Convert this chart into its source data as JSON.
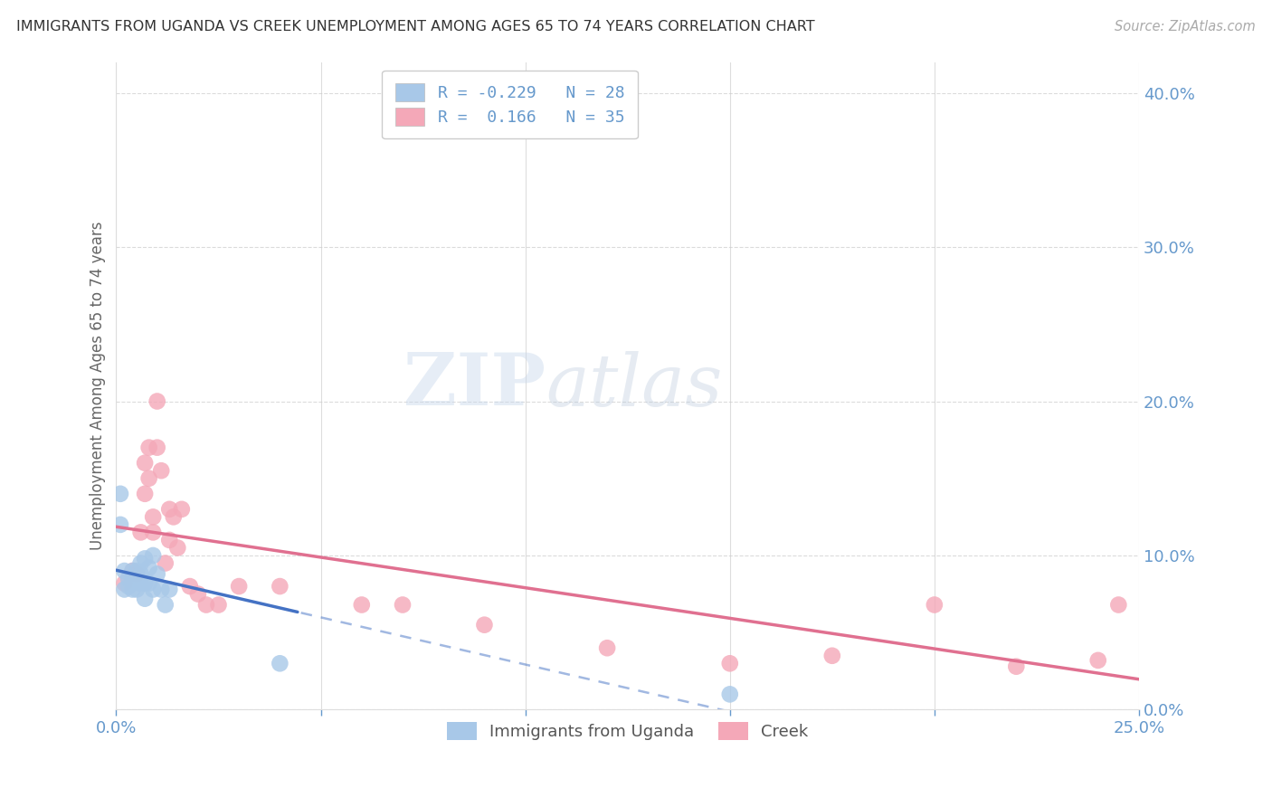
{
  "title": "IMMIGRANTS FROM UGANDA VS CREEK UNEMPLOYMENT AMONG AGES 65 TO 74 YEARS CORRELATION CHART",
  "source": "Source: ZipAtlas.com",
  "xlabel": "",
  "ylabel": "Unemployment Among Ages 65 to 74 years",
  "legend_bottom": [
    "Immigrants from Uganda",
    "Creek"
  ],
  "uganda_R": -0.229,
  "uganda_N": 28,
  "creek_R": 0.166,
  "creek_N": 35,
  "xlim": [
    0.0,
    0.25
  ],
  "ylim": [
    0.0,
    0.42
  ],
  "yticks": [
    0.0,
    0.1,
    0.2,
    0.3,
    0.4
  ],
  "ytick_labels": [
    "0.0%",
    "10.0%",
    "20.0%",
    "30.0%",
    "40.0%"
  ],
  "xticks": [
    0.0,
    0.05,
    0.1,
    0.15,
    0.2,
    0.25
  ],
  "xtick_labels": [
    "0.0%",
    "",
    "",
    "",
    "",
    "25.0%"
  ],
  "uganda_color": "#a8c8e8",
  "creek_color": "#f4a8b8",
  "uganda_line_color": "#4472c4",
  "creek_line_color": "#e07090",
  "watermark_zip": "ZIP",
  "watermark_atlas": "atlas",
  "background_color": "#ffffff",
  "grid_color": "#cccccc",
  "title_color": "#333333",
  "tick_color": "#6699cc",
  "uganda_points_x": [
    0.001,
    0.001,
    0.002,
    0.002,
    0.003,
    0.003,
    0.004,
    0.004,
    0.004,
    0.005,
    0.005,
    0.005,
    0.006,
    0.006,
    0.006,
    0.007,
    0.007,
    0.007,
    0.008,
    0.008,
    0.009,
    0.009,
    0.01,
    0.011,
    0.012,
    0.013,
    0.04,
    0.15
  ],
  "uganda_points_y": [
    0.14,
    0.12,
    0.09,
    0.078,
    0.085,
    0.08,
    0.09,
    0.085,
    0.078,
    0.09,
    0.085,
    0.078,
    0.095,
    0.088,
    0.082,
    0.098,
    0.082,
    0.072,
    0.092,
    0.082,
    0.1,
    0.078,
    0.088,
    0.078,
    0.068,
    0.078,
    0.03,
    0.01
  ],
  "creek_points_x": [
    0.002,
    0.004,
    0.005,
    0.006,
    0.007,
    0.007,
    0.008,
    0.008,
    0.009,
    0.009,
    0.01,
    0.01,
    0.011,
    0.012,
    0.013,
    0.013,
    0.014,
    0.015,
    0.016,
    0.018,
    0.02,
    0.022,
    0.025,
    0.03,
    0.04,
    0.06,
    0.07,
    0.09,
    0.12,
    0.15,
    0.175,
    0.2,
    0.22,
    0.24,
    0.245
  ],
  "creek_points_y": [
    0.082,
    0.09,
    0.088,
    0.115,
    0.16,
    0.14,
    0.17,
    0.15,
    0.125,
    0.115,
    0.2,
    0.17,
    0.155,
    0.095,
    0.11,
    0.13,
    0.125,
    0.105,
    0.13,
    0.08,
    0.075,
    0.068,
    0.068,
    0.08,
    0.08,
    0.068,
    0.068,
    0.055,
    0.04,
    0.03,
    0.035,
    0.068,
    0.028,
    0.032,
    0.068
  ]
}
